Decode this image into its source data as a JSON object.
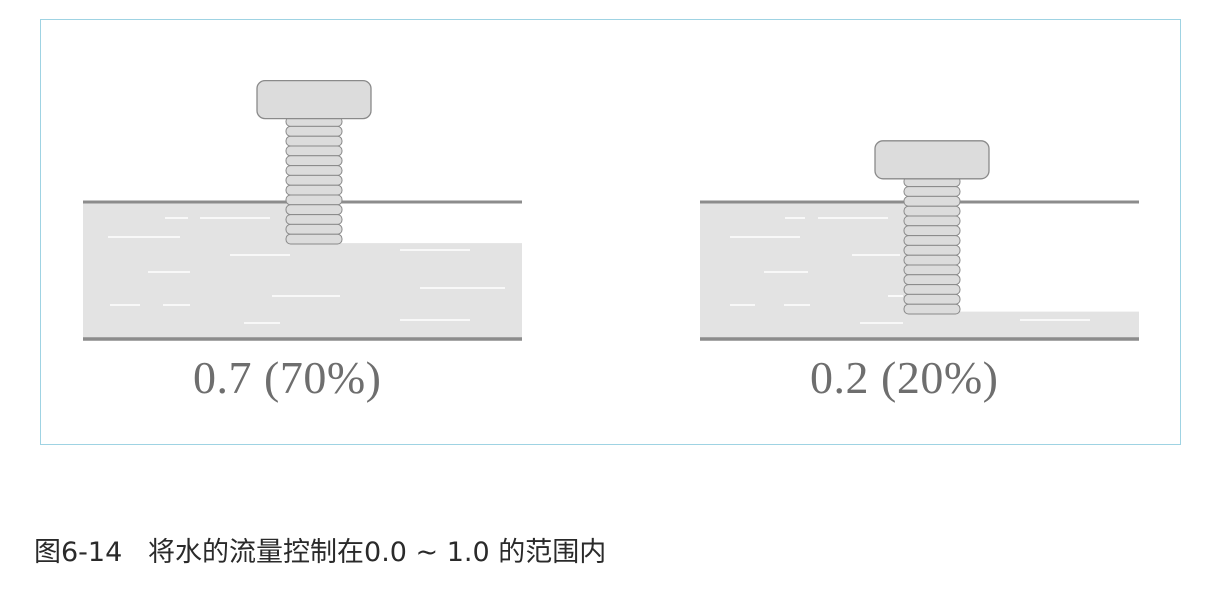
{
  "colors": {
    "frame_border": "#9fd3e3",
    "water_fill": "#e3e3e3",
    "channel_line": "#8c8c8c",
    "screw_fill": "#dcdcdc",
    "screw_stroke": "#8a8a8a",
    "ripple": "#ffffff"
  },
  "panels": [
    {
      "label": "0.7 (70%)",
      "flow_fraction": 0.7,
      "icon": "screw-valve-icon"
    },
    {
      "label": "0.2 (20%)",
      "flow_fraction": 0.2,
      "icon": "screw-valve-icon"
    }
  ],
  "caption": {
    "figure_number": "图6-14",
    "text": "将水的流量控制在0.0 ~ 1.0 的范围内"
  }
}
